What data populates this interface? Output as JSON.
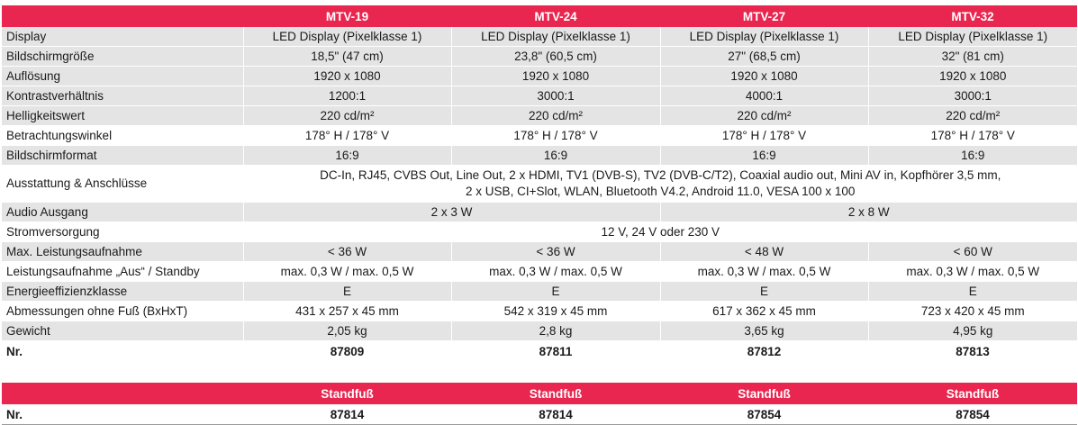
{
  "header": {
    "models": [
      "MTV-19",
      "MTV-24",
      "MTV-27",
      "MTV-32"
    ]
  },
  "rows": [
    {
      "label": "Display",
      "values": [
        "LED Display (Pixelklasse 1)",
        "LED Display (Pixelklasse 1)",
        "LED Display (Pixelklasse 1)",
        "LED Display (Pixelklasse 1)"
      ]
    },
    {
      "label": "Bildschirmgröße",
      "values": [
        "18,5\" (47 cm)",
        "23,8\" (60,5 cm)",
        "27\" (68,5 cm)",
        "32\" (81 cm)"
      ]
    },
    {
      "label": "Auflösung",
      "values": [
        "1920 x 1080",
        "1920 x 1080",
        "1920 x 1080",
        "1920 x 1080"
      ]
    },
    {
      "label": "Kontrastverhältnis",
      "values": [
        "1200:1",
        "3000:1",
        "4000:1",
        "3000:1"
      ]
    },
    {
      "label": "Helligkeitswert",
      "values": [
        "220 cd/m²",
        "220 cd/m²",
        "220 cd/m²",
        "220 cd/m²"
      ]
    },
    {
      "label": "Betrachtungswinkel",
      "values": [
        "178° H / 178° V",
        "178° H / 178° V",
        "178° H / 178° V",
        "178° H / 178° V"
      ]
    },
    {
      "label": "Bildschirmformat",
      "values": [
        "16:9",
        "16:9",
        "16:9",
        "16:9"
      ]
    }
  ],
  "ausstattung": {
    "label": "Ausstattung & Anschlüsse",
    "line1": "DC-In, RJ45, CVBS Out, Line Out, 2 x HDMI, TV1 (DVB-S), TV2 (DVB-C/T2), Coaxial audio out, Mini AV in, Kopfhörer 3,5 mm,",
    "line2": "2 x USB, CI+Slot, WLAN, Bluetooth V4.2, Android 11.0, VESA 100 x 100"
  },
  "audio": {
    "label": "Audio Ausgang",
    "small": "2 x 3 W",
    "large": "2 x 8 W"
  },
  "strom": {
    "label": "Stromversorgung",
    "value": "12 V, 24 V oder 230 V"
  },
  "rows2": [
    {
      "label": "Max. Leistungsaufnahme",
      "values": [
        "< 36 W",
        "< 36 W",
        "< 48 W",
        "< 60 W"
      ]
    },
    {
      "label": "Leistungsaufnahme „Aus“ / Standby",
      "values": [
        "max. 0,3 W / max. 0,5 W",
        "max. 0,3 W / max. 0,5 W",
        "max. 0,3 W / max. 0,5 W",
        "max. 0,3 W / max. 0,5 W"
      ]
    },
    {
      "label": "Energieeffizienzklasse",
      "values": [
        "E",
        "E",
        "E",
        "E"
      ]
    },
    {
      "label": "Abmessungen ohne Fuß (BxHxT)",
      "values": [
        "431 x 257 x 45 mm",
        "542 x 319 x 45 mm",
        "617 x 362 x 45 mm",
        "723 x 420 x 45 mm"
      ]
    },
    {
      "label": "Gewicht",
      "values": [
        "2,05 kg",
        "2,8 kg",
        "3,65 kg",
        "4,95 kg"
      ]
    }
  ],
  "nr": {
    "label": "Nr.",
    "values": [
      "87809",
      "87811",
      "87812",
      "87813"
    ]
  },
  "standfuss": {
    "header": [
      "Standfuß",
      "Standfuß",
      "Standfuß",
      "Standfuß"
    ],
    "nr_label": "Nr.",
    "nr_values": [
      "87814",
      "87814",
      "87854",
      "87854"
    ]
  },
  "colors": {
    "header_red": "#e8264f",
    "row_gray": "#e4e4e4"
  }
}
